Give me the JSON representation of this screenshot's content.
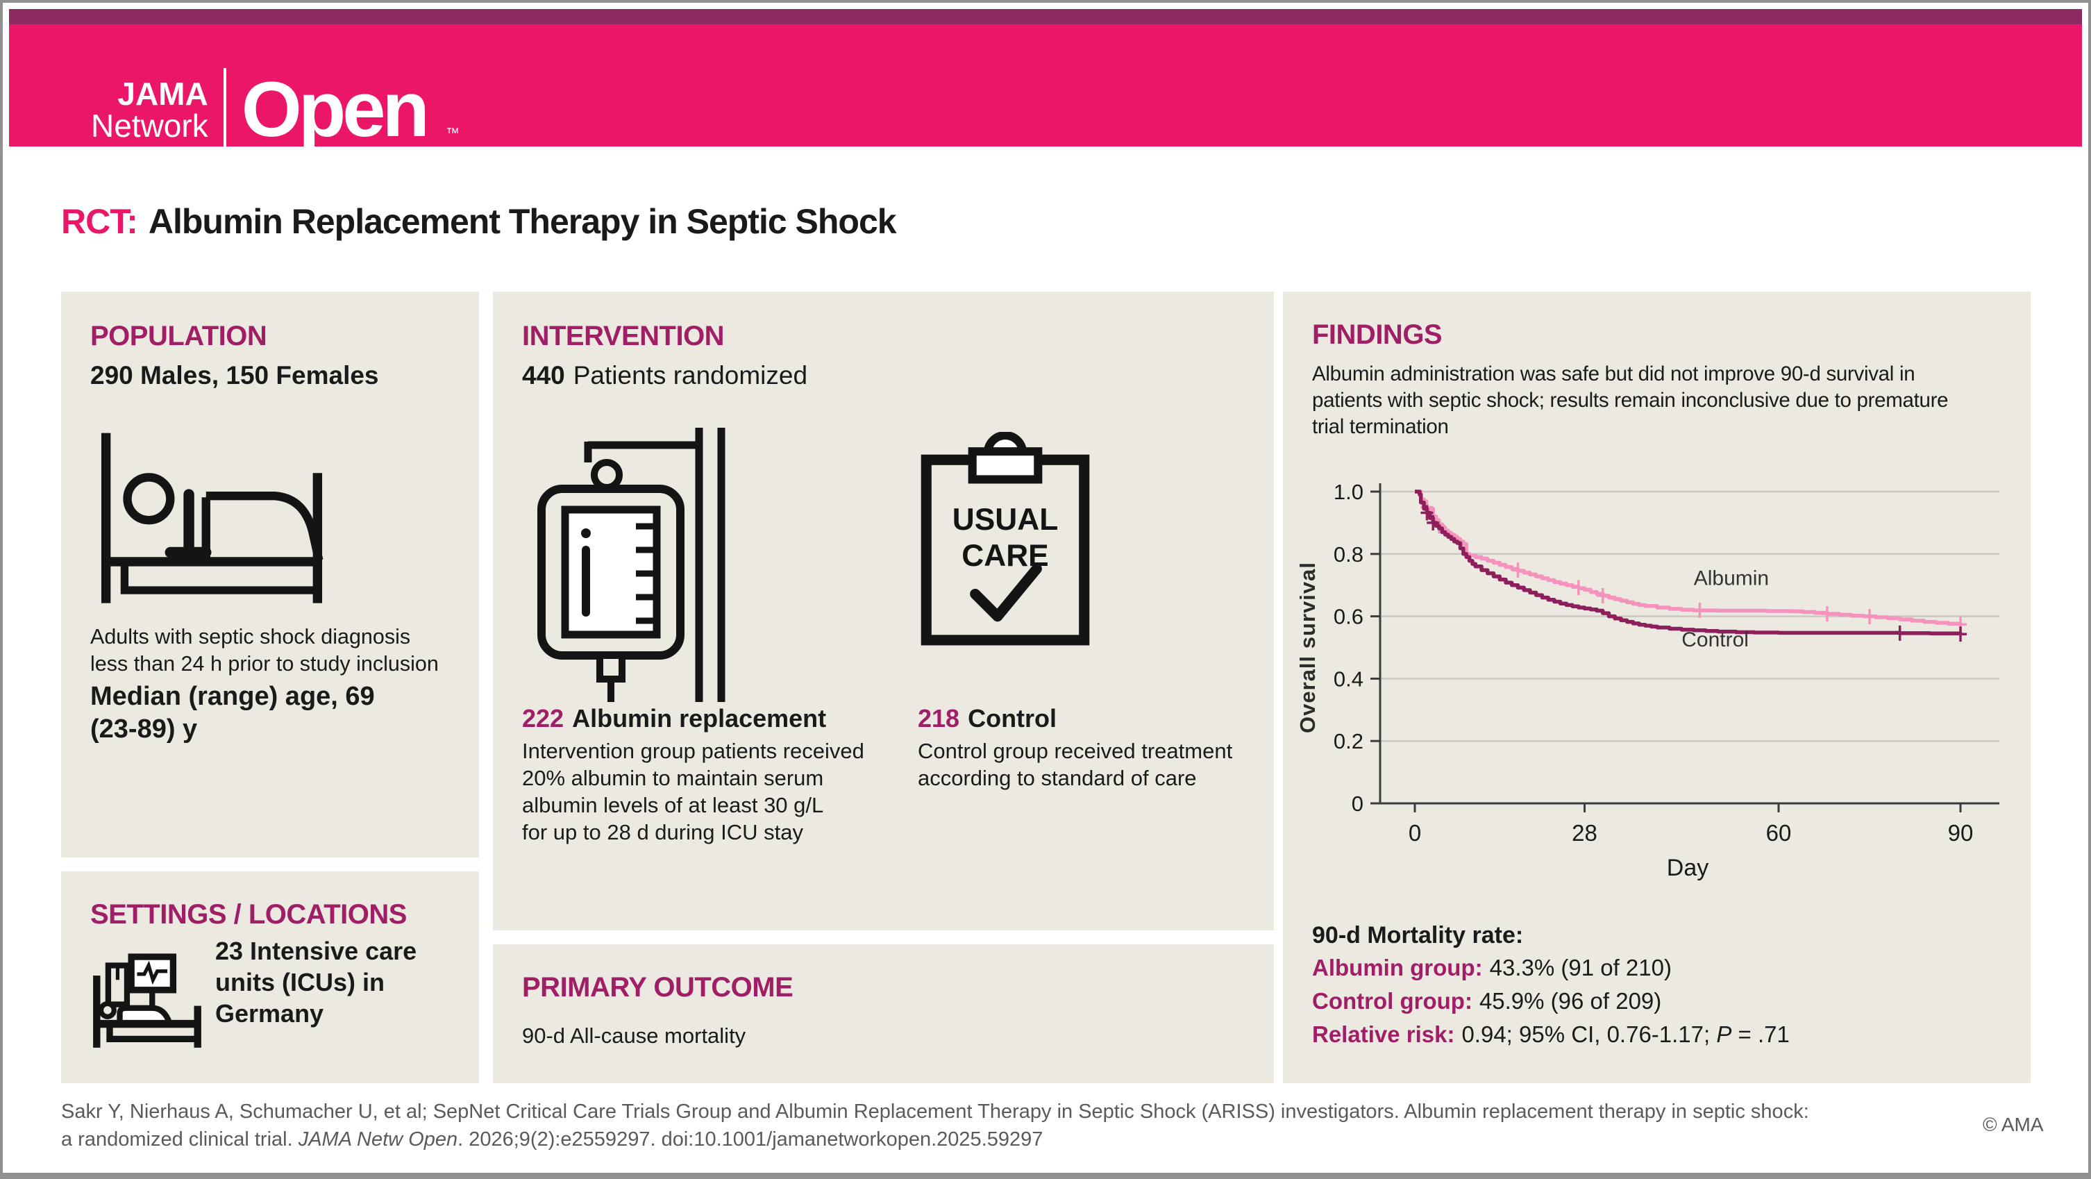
{
  "header": {
    "brand_jama": "JAMA",
    "brand_network": "Network",
    "brand_open": "Open",
    "brand_tm": "™"
  },
  "title": {
    "prefix": "RCT:",
    "text": "Albumin Replacement Therapy in Septic Shock"
  },
  "population": {
    "heading": "POPULATION",
    "subtitle": "290 Males, 150 Females",
    "icon": "patient-in-bed-icon",
    "desc_lines": [
      "Adults with septic shock diagnosis",
      "less than 24 h prior to study inclusion"
    ],
    "median_lines": [
      "Median (range) age, 69",
      "(23-89) y"
    ]
  },
  "settings": {
    "heading": "SETTINGS / LOCATIONS",
    "icon": "icu-bed-monitor-icon",
    "text_lines": [
      "23 Intensive care",
      "units (ICUs) in",
      "Germany"
    ]
  },
  "intervention": {
    "heading": "INTERVENTION",
    "count": "440",
    "count_label": "Patients randomized",
    "iv_icon": "iv-bag-icon",
    "clipboard_icon": "usual-care-clipboard-icon",
    "clipboard_line1": "USUAL",
    "clipboard_line2": "CARE",
    "albumin": {
      "count": "222",
      "label": "Albumin replacement",
      "desc_lines": [
        "Intervention group patients received",
        "20% albumin to maintain serum",
        "albumin levels of at least 30 g/L",
        "for up to 28 d during ICU stay"
      ]
    },
    "control": {
      "count": "218",
      "label": "Control",
      "desc_lines": [
        "Control group received treatment",
        "according to standard of care"
      ]
    }
  },
  "primary_outcome": {
    "heading": "PRIMARY OUTCOME",
    "text": "90-d All-cause mortality"
  },
  "findings": {
    "heading": "FINDINGS",
    "summary_lines": [
      "Albumin administration was safe but did not improve 90-d survival in",
      "patients with septic shock; results remain inconclusive due to premature",
      "trial termination"
    ],
    "mortality_heading": "90-d Mortality rate:",
    "rows": [
      {
        "label": "Albumin group:",
        "value": "43.3% (91 of 210)"
      },
      {
        "label": "Control group:",
        "value": "45.9% (96 of 209)"
      }
    ],
    "rr_label": "Relative risk:",
    "rr_value_pre": "0.94; 95% CI, 0.76-1.17; ",
    "rr_p": "P",
    "rr_value_post": " = .71"
  },
  "chart_data": {
    "type": "line",
    "subtype": "kaplan-meier-step",
    "title": "",
    "xlabel": "Day",
    "ylabel": "Overall survival",
    "xlim": [
      0,
      96
    ],
    "ylim": [
      0,
      1.0
    ],
    "xticks": [
      0,
      28,
      60,
      90
    ],
    "yticks": [
      0,
      0.2,
      0.4,
      0.6,
      0.8,
      1.0
    ],
    "grid": "horizontal",
    "series": [
      {
        "name": "Albumin",
        "color": "#f592bd",
        "label_pos": [
          46,
          0.7
        ],
        "points": [
          [
            0,
            1.0
          ],
          [
            1,
            0.975
          ],
          [
            1.5,
            0.955
          ],
          [
            2,
            0.945
          ],
          [
            3,
            0.92
          ],
          [
            3.5,
            0.905
          ],
          [
            4,
            0.895
          ],
          [
            4.5,
            0.885
          ],
          [
            5,
            0.875
          ],
          [
            5.5,
            0.868
          ],
          [
            6,
            0.862
          ],
          [
            6.5,
            0.855
          ],
          [
            7,
            0.848
          ],
          [
            7.5,
            0.84
          ],
          [
            8,
            0.832
          ],
          [
            8.5,
            0.8
          ],
          [
            9,
            0.795
          ],
          [
            10,
            0.79
          ],
          [
            11,
            0.785
          ],
          [
            12,
            0.778
          ],
          [
            13,
            0.772
          ],
          [
            14,
            0.765
          ],
          [
            15,
            0.758
          ],
          [
            16,
            0.752
          ],
          [
            17,
            0.746
          ],
          [
            18,
            0.74
          ],
          [
            19,
            0.734
          ],
          [
            20,
            0.728
          ],
          [
            21,
            0.722
          ],
          [
            22,
            0.716
          ],
          [
            23,
            0.71
          ],
          [
            24,
            0.705
          ],
          [
            25,
            0.7
          ],
          [
            26,
            0.695
          ],
          [
            27,
            0.69
          ],
          [
            28,
            0.685
          ],
          [
            29,
            0.678
          ],
          [
            30,
            0.672
          ],
          [
            31,
            0.666
          ],
          [
            32,
            0.66
          ],
          [
            33,
            0.655
          ],
          [
            34,
            0.65
          ],
          [
            35,
            0.645
          ],
          [
            36,
            0.64
          ],
          [
            37,
            0.636
          ],
          [
            38,
            0.633
          ],
          [
            40,
            0.628
          ],
          [
            42,
            0.624
          ],
          [
            44,
            0.621
          ],
          [
            46,
            0.619
          ],
          [
            50,
            0.618
          ],
          [
            58,
            0.617
          ],
          [
            62,
            0.616
          ],
          [
            64,
            0.614
          ],
          [
            66,
            0.611
          ],
          [
            68,
            0.608
          ],
          [
            70,
            0.605
          ],
          [
            72,
            0.602
          ],
          [
            74,
            0.6
          ],
          [
            76,
            0.597
          ],
          [
            78,
            0.594
          ],
          [
            80,
            0.59
          ],
          [
            82,
            0.586
          ],
          [
            84,
            0.582
          ],
          [
            86,
            0.579
          ],
          [
            88,
            0.576
          ],
          [
            90,
            0.573
          ]
        ],
        "censors": [
          [
            2,
            0.95
          ],
          [
            4,
            0.89
          ],
          [
            17,
            0.748
          ],
          [
            27,
            0.692
          ],
          [
            31,
            0.666
          ],
          [
            47,
            0.619
          ],
          [
            68,
            0.608
          ],
          [
            75,
            0.599
          ],
          [
            90,
            0.574
          ]
        ]
      },
      {
        "name": "Control",
        "color": "#8f1f5c",
        "label_pos": [
          44,
          0.503
        ],
        "points": [
          [
            0,
            1.0
          ],
          [
            0.8,
            0.99
          ],
          [
            1,
            0.965
          ],
          [
            1.5,
            0.945
          ],
          [
            2,
            0.932
          ],
          [
            2.5,
            0.915
          ],
          [
            3,
            0.9
          ],
          [
            3.5,
            0.89
          ],
          [
            4,
            0.882
          ],
          [
            4.5,
            0.87
          ],
          [
            5,
            0.862
          ],
          [
            5.5,
            0.855
          ],
          [
            6,
            0.848
          ],
          [
            6.5,
            0.84
          ],
          [
            7,
            0.835
          ],
          [
            7.5,
            0.818
          ],
          [
            8,
            0.8
          ],
          [
            8.5,
            0.79
          ],
          [
            9,
            0.778
          ],
          [
            9.5,
            0.768
          ],
          [
            10,
            0.76
          ],
          [
            11,
            0.748
          ],
          [
            12,
            0.738
          ],
          [
            13,
            0.728
          ],
          [
            14,
            0.718
          ],
          [
            15,
            0.708
          ],
          [
            16,
            0.7
          ],
          [
            17,
            0.692
          ],
          [
            18,
            0.684
          ],
          [
            19,
            0.676
          ],
          [
            20,
            0.668
          ],
          [
            21,
            0.66
          ],
          [
            22,
            0.653
          ],
          [
            23,
            0.647
          ],
          [
            24,
            0.641
          ],
          [
            25,
            0.636
          ],
          [
            26,
            0.632
          ],
          [
            27,
            0.628
          ],
          [
            28,
            0.625
          ],
          [
            29,
            0.622
          ],
          [
            30,
            0.618
          ],
          [
            31,
            0.61
          ],
          [
            32,
            0.6
          ],
          [
            33,
            0.593
          ],
          [
            34,
            0.587
          ],
          [
            35,
            0.582
          ],
          [
            36,
            0.577
          ],
          [
            37,
            0.573
          ],
          [
            38,
            0.57
          ],
          [
            39,
            0.567
          ],
          [
            40,
            0.564
          ],
          [
            42,
            0.56
          ],
          [
            44,
            0.557
          ],
          [
            46,
            0.555
          ],
          [
            48,
            0.553
          ],
          [
            50,
            0.551
          ],
          [
            53,
            0.549
          ],
          [
            56,
            0.548
          ],
          [
            60,
            0.547
          ],
          [
            70,
            0.547
          ],
          [
            80,
            0.546
          ],
          [
            85,
            0.545
          ],
          [
            88,
            0.545
          ],
          [
            90,
            0.542
          ]
        ],
        "censors": [
          [
            2,
            0.932
          ],
          [
            3,
            0.9
          ],
          [
            80,
            0.546
          ],
          [
            90,
            0.543
          ]
        ]
      }
    ]
  },
  "footer": {
    "line1": "Sakr Y, Nierhaus A, Schumacher U, et al; SepNet Critical Care Trials Group and Albumin Replacement Therapy in Septic Shock (ARISS) investigators. Albumin replacement therapy in septic shock:",
    "line2_prefix": "a randomized clinical trial. ",
    "line2_italic": "JAMA Netw Open",
    "line2_suffix": ". 2026;9(2):e2559297. doi:10.1001/jamanetworkopen.2025.59297",
    "copyright": "© AMA"
  },
  "colors": {
    "brand_pink": "#ec1668",
    "brand_dark_strip": "#8d2b60",
    "section_heading": "#a01e66",
    "panel_bg": "#ebe9e0",
    "albumin_curve": "#f592bd",
    "control_curve": "#8f1f5c",
    "text_dark": "#1a1a1a",
    "muted_text": "#5a5a5a",
    "grid_line": "#cbc9bf"
  }
}
